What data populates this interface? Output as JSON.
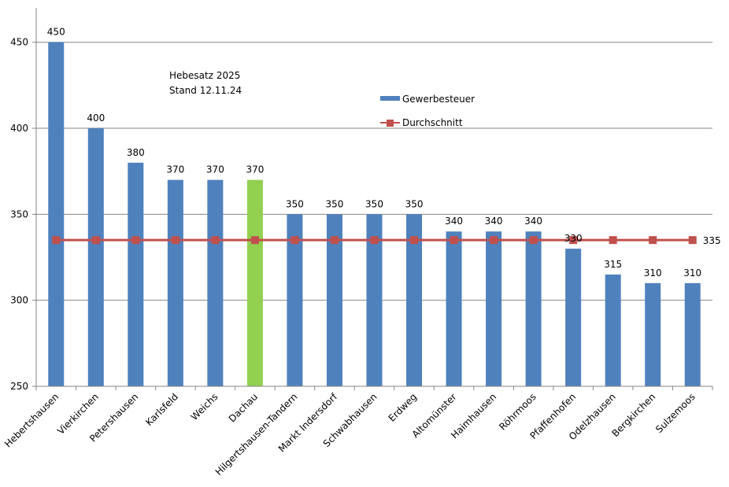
{
  "chart_data": {
    "type": "bar",
    "title": "Hebesatz 2025",
    "subtitle": "Stand 12.11.24",
    "xlabel": "",
    "ylabel": "",
    "ylim": [
      250,
      470
    ],
    "yticks": [
      250,
      300,
      350,
      400,
      450
    ],
    "grid": true,
    "legend_position": "top-center",
    "categories": [
      "Hebertshausen",
      "Vierkirchen",
      "Petershausen",
      "Karlsfeld",
      "Weichs",
      "Dachau",
      "Hilgertshausen-Tandern",
      "Markt Indersdorf",
      "Schwabhausen",
      "Erdweg",
      "Altomünster",
      "Haimhausen",
      "Röhrmoos",
      "Pfaffenhofen",
      "Odelzhausen",
      "Bergkirchen",
      "Sulzemoos"
    ],
    "series": [
      {
        "name": "Gewerbesteuer",
        "type": "bar",
        "color": "#4F81BD",
        "highlight_color": "#92D050",
        "highlight_index": 5,
        "values": [
          450,
          400,
          380,
          370,
          370,
          370,
          350,
          350,
          350,
          350,
          340,
          340,
          340,
          330,
          315,
          310,
          310
        ]
      },
      {
        "name": "Durchschnitt",
        "type": "line",
        "color": "#C0504D",
        "values": [
          335,
          335,
          335,
          335,
          335,
          335,
          335,
          335,
          335,
          335,
          335,
          335,
          335,
          335,
          335,
          335,
          335
        ],
        "end_label": "335"
      }
    ]
  }
}
